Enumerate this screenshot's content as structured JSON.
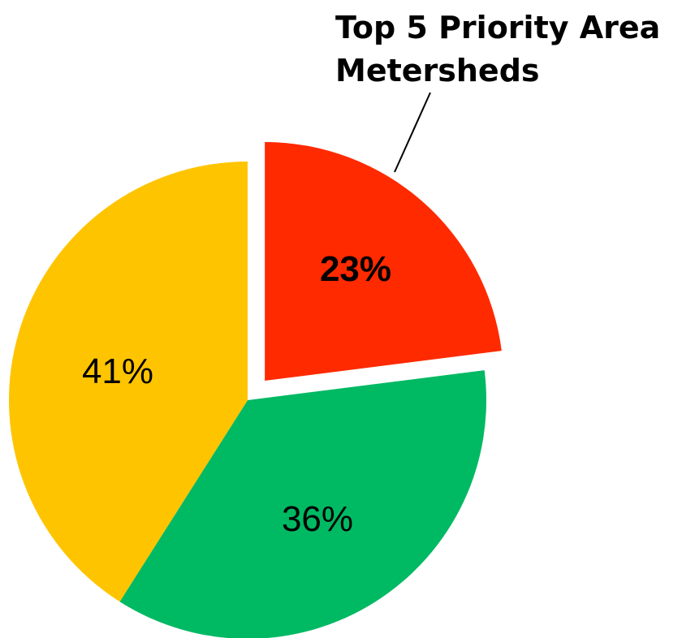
{
  "chart_data": {
    "type": "pie",
    "slices": [
      {
        "label": "Top 5 Priority Area Metersheds",
        "value": 23,
        "display": "23%",
        "color": "#FF2A00",
        "exploded": true
      },
      {
        "label": "",
        "value": 36,
        "display": "36%",
        "color": "#00B963",
        "exploded": false
      },
      {
        "label": "",
        "value": 41,
        "display": "41%",
        "color": "#FFC400",
        "exploded": false
      }
    ],
    "callout": {
      "line1": "Top 5 Priority Area",
      "line2": "Metersheds"
    },
    "legend": "none"
  }
}
